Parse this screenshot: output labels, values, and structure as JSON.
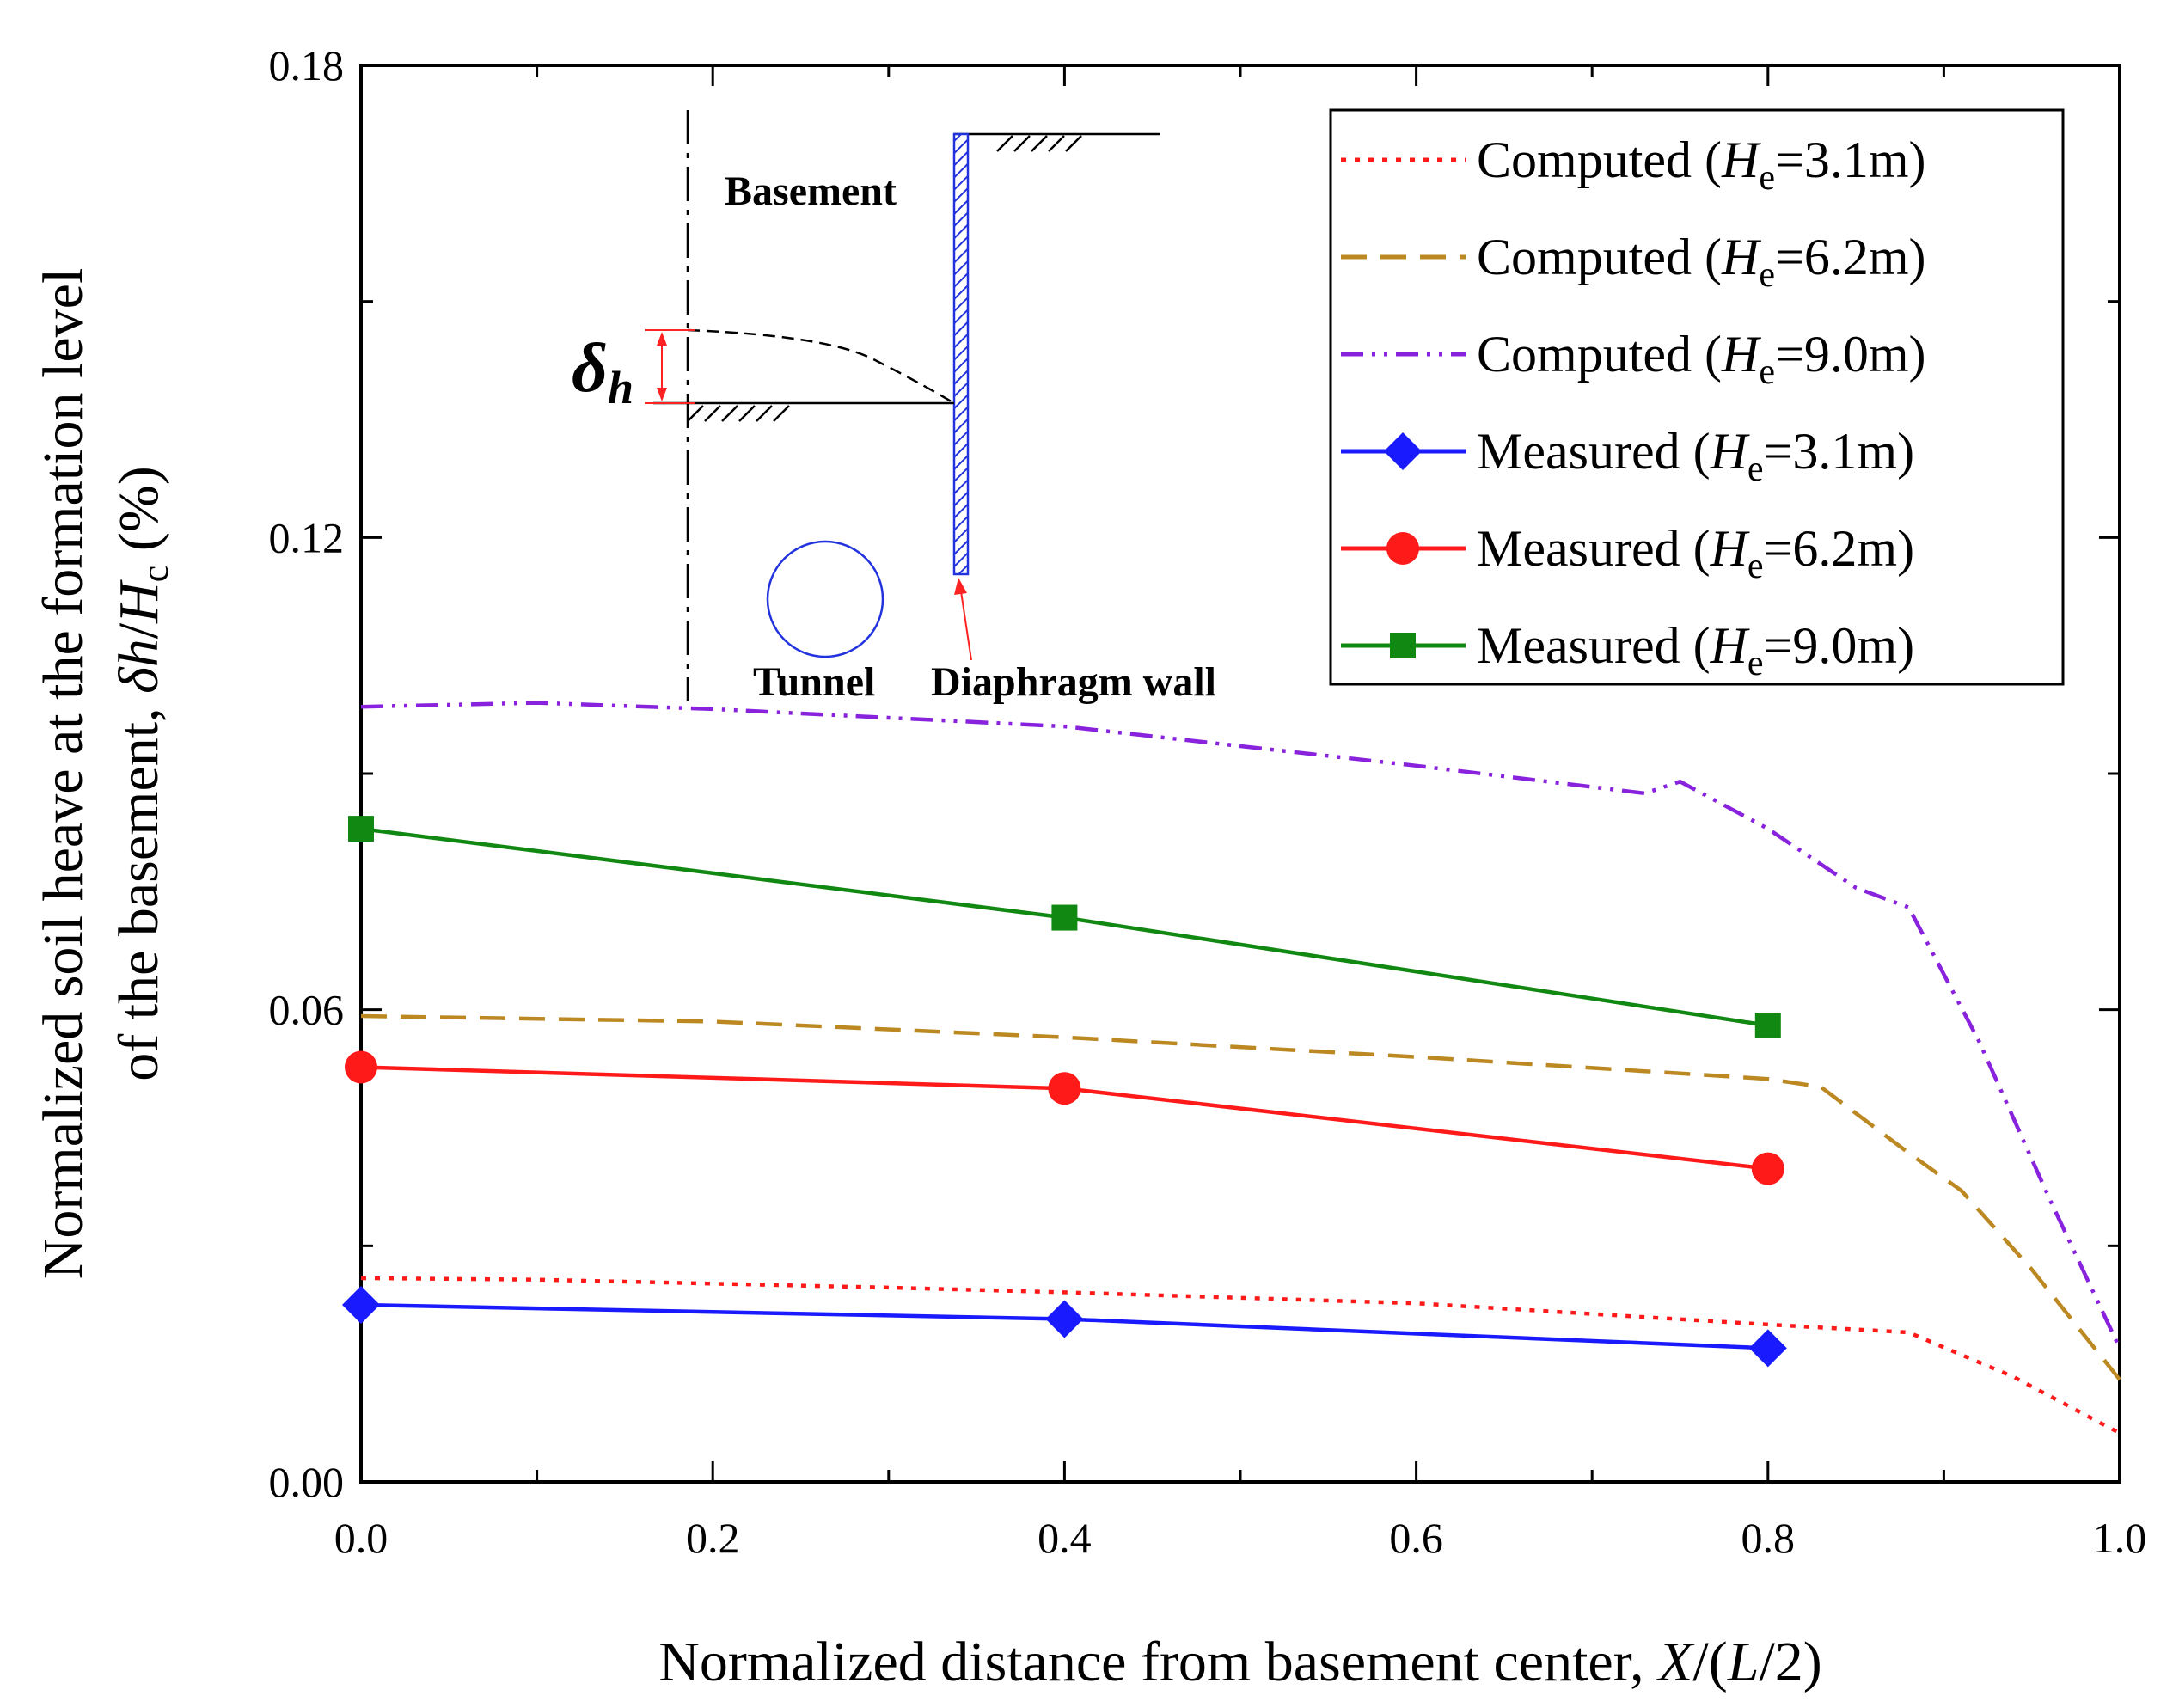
{
  "chart_data": {
    "type": "line",
    "xlabel": {
      "main": "Normalized distance from basement center, ",
      "var1": "X",
      "mid": "/(",
      "var2": "L",
      "end": "/2)"
    },
    "ylabel": {
      "line1": "Normalized soil heave at the formation level",
      "line2_main": "of the basement, ",
      "delta": "δ",
      "var_h": "h",
      "slash": "/",
      "var_H": "H",
      "sub_c": "c",
      "unit": " (%)"
    },
    "xlim": [
      0.0,
      1.0
    ],
    "ylim": [
      0.0,
      0.18
    ],
    "x_ticks": [
      "0.0",
      "0.2",
      "0.4",
      "0.6",
      "0.8",
      "1.0"
    ],
    "y_ticks": [
      "0.00",
      "0.06",
      "0.12",
      "0.18"
    ],
    "legend_position": "top-right",
    "series": [
      {
        "name": "Computed (He=3.1m)",
        "label_main": "Computed (",
        "label_var": "H",
        "label_sub": "e",
        "label_end": "=3.1m)",
        "color": "#ff1a1a",
        "style": "dot",
        "marker": "none",
        "x": [
          0.0,
          0.1,
          0.3,
          0.4,
          0.6,
          0.8,
          0.88,
          0.94,
          1.0
        ],
        "y": [
          0.0259,
          0.0257,
          0.0247,
          0.0241,
          0.0227,
          0.02,
          0.019,
          0.0133,
          0.0062
        ]
      },
      {
        "name": "Computed (He=6.2m)",
        "label_main": "Computed (",
        "label_var": "H",
        "label_sub": "e",
        "label_end": "=6.2m)",
        "color": "#bb8822",
        "style": "dash",
        "marker": "none",
        "x": [
          0.0,
          0.2,
          0.4,
          0.6,
          0.8,
          0.83,
          0.88,
          0.91,
          0.95,
          1.0
        ],
        "y": [
          0.0592,
          0.0585,
          0.0565,
          0.054,
          0.0512,
          0.0502,
          0.0418,
          0.037,
          0.027,
          0.013
        ]
      },
      {
        "name": "Computed (He=9.0m)",
        "label_main": "Computed (",
        "label_var": "H",
        "label_sub": "e",
        "label_end": "=9.0m)",
        "color": "#8822dd",
        "style": "dashdotdot",
        "marker": "none",
        "x": [
          0.0,
          0.1,
          0.2,
          0.4,
          0.6,
          0.73,
          0.75,
          0.8,
          0.85,
          0.88,
          0.92,
          0.96,
          1.0
        ],
        "y": [
          0.0985,
          0.099,
          0.0982,
          0.096,
          0.091,
          0.0875,
          0.089,
          0.083,
          0.0755,
          0.073,
          0.056,
          0.036,
          0.017
        ]
      },
      {
        "name": "Measured (He=3.1m)",
        "label_main": "Measured (",
        "label_var": "H",
        "label_sub": "e",
        "label_end": "=3.1m)",
        "color": "#1a1aff",
        "style": "solid",
        "marker": "diamond",
        "x": [
          0.0,
          0.4,
          0.8
        ],
        "y": [
          0.0225,
          0.0207,
          0.017
        ]
      },
      {
        "name": "Measured (He=6.2m)",
        "label_main": "Measured (",
        "label_var": "H",
        "label_sub": "e",
        "label_end": "=6.2m)",
        "color": "#ff1a1a",
        "style": "solid",
        "marker": "circle",
        "x": [
          0.0,
          0.4,
          0.8
        ],
        "y": [
          0.0527,
          0.05,
          0.0398
        ]
      },
      {
        "name": "Measured (He=9.0m)",
        "label_main": "Measured (",
        "label_var": "H",
        "label_sub": "e",
        "label_end": "=9.0m)",
        "color": "#118811",
        "style": "solid",
        "marker": "square",
        "x": [
          0.0,
          0.4,
          0.8
        ],
        "y": [
          0.083,
          0.0717,
          0.058
        ]
      }
    ]
  },
  "inset": {
    "label_basement": "Basement",
    "label_tunnel": "Tunnel",
    "label_wall": "Diaphragm wall",
    "label_delta": "δ",
    "label_delta_sub": "h"
  }
}
